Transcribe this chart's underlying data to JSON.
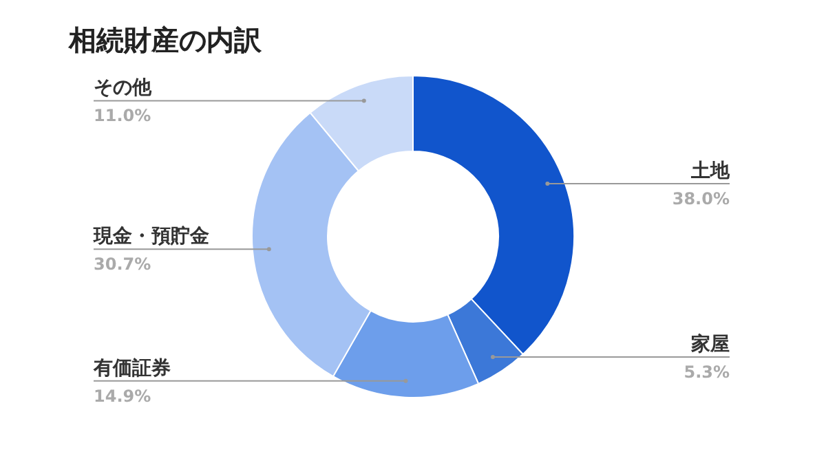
{
  "chart_data": {
    "type": "donut",
    "title": "相続財産の内訳",
    "categories": [
      "土地",
      "家屋",
      "有価証券",
      "現金・預貯金",
      "その他"
    ],
    "values": [
      38.0,
      5.3,
      14.9,
      30.7,
      11.0
    ],
    "value_labels": [
      "38.0%",
      "5.3%",
      "14.9%",
      "30.7%",
      "11.0%"
    ],
    "colors": [
      "#1155cc",
      "#3c78d8",
      "#6d9eeb",
      "#a4c2f4",
      "#c9daf8"
    ]
  }
}
